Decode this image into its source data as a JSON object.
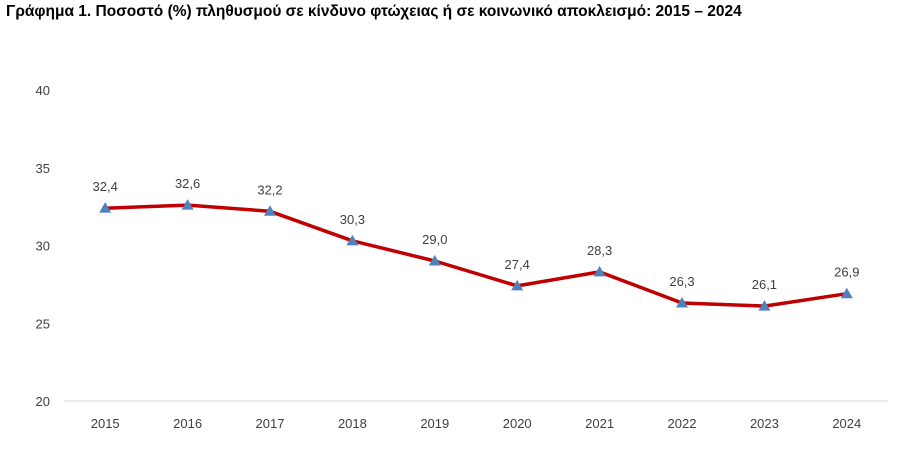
{
  "title": "Γράφημα 1. Ποσοστό (%) πληθυσμού σε κίνδυνο φτώχειας ή σε κοινωνικό αποκλεισμό: 2015 – 2024",
  "colors": {
    "line": "#C00000",
    "marker": "#4F81BD",
    "axis": "#D9D9D9",
    "text": "#404040"
  },
  "chart_data": {
    "type": "line",
    "title": "Γράφημα 1. Ποσοστό (%) πληθυσμού σε κίνδυνο φτώχειας ή σε κοινωνικό αποκλεισμό: 2015 – 2024",
    "categories": [
      "2015",
      "2016",
      "2017",
      "2018",
      "2019",
      "2020",
      "2021",
      "2022",
      "2023",
      "2024"
    ],
    "series": [
      {
        "values": [
          32.4,
          32.6,
          32.2,
          30.3,
          29.0,
          27.4,
          28.3,
          26.3,
          26.1,
          26.9
        ],
        "data_labels": [
          "32,4",
          "32,6",
          "32,2",
          "30,3",
          "29,0",
          "27,4",
          "28,3",
          "26,3",
          "26,1",
          "26,9"
        ]
      }
    ],
    "y_ticks": [
      "20",
      "25",
      "30",
      "35",
      "40"
    ],
    "ylim": [
      20,
      40
    ],
    "grid": false,
    "legend": "none",
    "marker": "triangle"
  }
}
